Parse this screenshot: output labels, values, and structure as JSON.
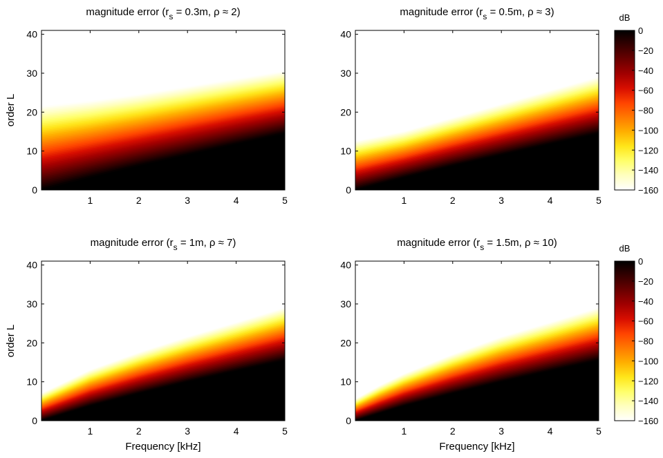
{
  "chart_data": [
    {
      "type": "heatmap",
      "title": "magnitude error (r_s = 0.3m, ρ ≈ 2)",
      "title_parts": {
        "prefix": "magnitude error (r",
        "sub": "s",
        "suffix": " = 0.3m, ρ ≈ 2)"
      },
      "xlabel": "",
      "ylabel": "order L",
      "xlim": [
        0,
        5
      ],
      "ylim": [
        0,
        41
      ],
      "xticks": [
        1,
        2,
        3,
        4,
        5
      ],
      "yticks": [
        0,
        10,
        20,
        30,
        40
      ],
      "boundary_0dB": {
        "x": [
          0,
          1,
          2,
          3,
          4,
          5
        ],
        "y": [
          0,
          3.2,
          6.2,
          9.0,
          11.8,
          14.5
        ]
      },
      "boundary_160dB": {
        "x": [
          0,
          1,
          2,
          3,
          4,
          5
        ],
        "y": [
          21.5,
          22.8,
          24.5,
          26.5,
          28.5,
          30.5
        ]
      }
    },
    {
      "type": "heatmap",
      "title": "magnitude error (r_s = 0.5m, ρ ≈ 3)",
      "title_parts": {
        "prefix": "magnitude error (r",
        "sub": "s",
        "suffix": " = 0.5m, ρ ≈ 3)"
      },
      "xlabel": "",
      "ylabel": "",
      "xlim": [
        0,
        5
      ],
      "ylim": [
        0,
        41
      ],
      "xticks": [
        1,
        2,
        3,
        4,
        5
      ],
      "yticks": [
        0,
        10,
        20,
        30,
        40
      ],
      "boundary_0dB": {
        "x": [
          0,
          1,
          2,
          3,
          4,
          5
        ],
        "y": [
          0,
          3.2,
          6.2,
          9.0,
          11.8,
          14.5
        ]
      },
      "boundary_160dB": {
        "x": [
          0,
          1,
          2,
          3,
          4,
          5
        ],
        "y": [
          12.5,
          15.0,
          18.5,
          22.0,
          25.5,
          29.0
        ]
      }
    },
    {
      "type": "heatmap",
      "title": "magnitude error (r_s = 1m, ρ ≈ 7)",
      "title_parts": {
        "prefix": "magnitude error (r",
        "sub": "s",
        "suffix": " = 1m, ρ ≈ 7)"
      },
      "xlabel": "Frequency [kHz]",
      "ylabel": "order L",
      "xlim": [
        0,
        5
      ],
      "ylim": [
        0,
        41
      ],
      "xticks": [
        1,
        2,
        3,
        4,
        5
      ],
      "yticks": [
        0,
        10,
        20,
        30,
        40
      ],
      "boundary_0dB": {
        "x": [
          0,
          1,
          2,
          3,
          4,
          5
        ],
        "y": [
          0,
          3.8,
          7.0,
          10.0,
          12.8,
          15.5
        ]
      },
      "boundary_160dB": {
        "x": [
          0,
          0.5,
          1,
          2,
          3,
          4,
          5
        ],
        "y": [
          7.0,
          10.0,
          13.0,
          17.5,
          21.5,
          25.2,
          29.0
        ]
      }
    },
    {
      "type": "heatmap",
      "title": "magnitude error (r_s = 1.5m, ρ ≈ 10)",
      "title_parts": {
        "prefix": "magnitude error (r",
        "sub": "s",
        "suffix": " = 1.5m, ρ ≈ 10)"
      },
      "xlabel": "Frequency [kHz]",
      "ylabel": "",
      "xlim": [
        0,
        5
      ],
      "ylim": [
        0,
        41
      ],
      "xticks": [
        1,
        2,
        3,
        4,
        5
      ],
      "yticks": [
        0,
        10,
        20,
        30,
        40
      ],
      "boundary_0dB": {
        "x": [
          0,
          1,
          2,
          3,
          4,
          5
        ],
        "y": [
          0,
          3.8,
          7.0,
          10.0,
          12.8,
          15.5
        ]
      },
      "boundary_160dB": {
        "x": [
          0,
          0.5,
          1,
          2,
          3,
          4,
          5
        ],
        "y": [
          5.5,
          9.0,
          12.0,
          17.0,
          21.5,
          25.2,
          29.0
        ]
      }
    }
  ],
  "colorbar": {
    "label": "dB",
    "range": [
      -160,
      0
    ],
    "ticks": [
      0,
      -20,
      -40,
      -60,
      -80,
      -100,
      -120,
      -140,
      -160
    ],
    "colormap": [
      "#000000",
      "#350000",
      "#6b0000",
      "#a20000",
      "#d80e00",
      "#ff4400",
      "#ff7a00",
      "#ffb000",
      "#ffe61a",
      "#ffff6b",
      "#ffffc0",
      "#ffffff"
    ]
  }
}
